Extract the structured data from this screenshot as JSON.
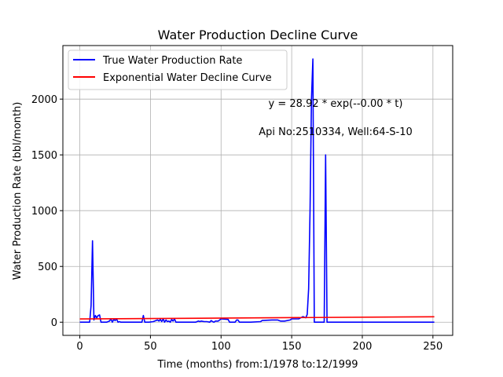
{
  "chart_data": {
    "type": "line",
    "title": "Water Production Decline Curve",
    "xlabel": "Time (months) from:1/1978 to:12/1999",
    "ylabel": "Water Production Rate (bbl/month)",
    "xlim": [
      -12,
      264
    ],
    "ylim": [
      -118,
      2480
    ],
    "xticks": [
      0,
      50,
      100,
      150,
      200,
      250
    ],
    "yticks": [
      0,
      500,
      1000,
      1500,
      2000
    ],
    "grid": true,
    "legend_position": "top-left",
    "annotations": [
      "y = 28.92 * exp(--0.00 * t)",
      "Api No:2510334, Well:64-S-10"
    ],
    "series": [
      {
        "name": "True Water Production Rate",
        "color": "#0000ff",
        "points": [
          [
            0,
            0
          ],
          [
            7,
            0
          ],
          [
            8,
            150
          ],
          [
            9,
            730
          ],
          [
            10,
            20
          ],
          [
            11,
            60
          ],
          [
            12,
            40
          ],
          [
            13,
            60
          ],
          [
            14,
            65
          ],
          [
            15,
            0
          ],
          [
            19,
            0
          ],
          [
            20,
            5
          ],
          [
            21,
            10
          ],
          [
            22,
            30
          ],
          [
            23,
            0
          ],
          [
            24,
            25
          ],
          [
            25,
            15
          ],
          [
            26,
            30
          ],
          [
            27,
            0
          ],
          [
            28,
            5
          ],
          [
            29,
            0
          ],
          [
            44,
            0
          ],
          [
            45,
            60
          ],
          [
            46,
            0
          ],
          [
            49,
            0
          ],
          [
            52,
            5
          ],
          [
            55,
            20
          ],
          [
            56,
            10
          ],
          [
            57,
            25
          ],
          [
            58,
            5
          ],
          [
            59,
            30
          ],
          [
            60,
            0
          ],
          [
            61,
            20
          ],
          [
            62,
            5
          ],
          [
            63,
            10
          ],
          [
            64,
            0
          ],
          [
            65,
            25
          ],
          [
            66,
            10
          ],
          [
            67,
            30
          ],
          [
            68,
            0
          ],
          [
            82,
            0
          ],
          [
            84,
            10
          ],
          [
            85,
            5
          ],
          [
            86,
            10
          ],
          [
            88,
            5
          ],
          [
            90,
            5
          ],
          [
            92,
            0
          ],
          [
            93,
            15
          ],
          [
            94,
            5
          ],
          [
            95,
            0
          ],
          [
            96,
            10
          ],
          [
            98,
            10
          ],
          [
            100,
            30
          ],
          [
            105,
            25
          ],
          [
            106,
            0
          ],
          [
            110,
            0
          ],
          [
            111,
            20
          ],
          [
            112,
            20
          ],
          [
            113,
            0
          ],
          [
            121,
            0
          ],
          [
            128,
            5
          ],
          [
            129,
            15
          ],
          [
            136,
            20
          ],
          [
            140,
            20
          ],
          [
            142,
            10
          ],
          [
            145,
            10
          ],
          [
            149,
            20
          ],
          [
            150,
            30
          ],
          [
            155,
            30
          ],
          [
            158,
            50
          ],
          [
            160,
            40
          ],
          [
            161,
            70
          ],
          [
            162,
            300
          ],
          [
            163,
            1000
          ],
          [
            164,
            2000
          ],
          [
            165,
            2360
          ],
          [
            166,
            0
          ],
          [
            173,
            0
          ],
          [
            174,
            1500
          ],
          [
            175,
            0
          ],
          [
            251,
            0
          ]
        ]
      },
      {
        "name": "Exponential Water Decline Curve",
        "color": "#ff0000",
        "points": [
          [
            0,
            29
          ],
          [
            251,
            49
          ]
        ]
      }
    ]
  }
}
